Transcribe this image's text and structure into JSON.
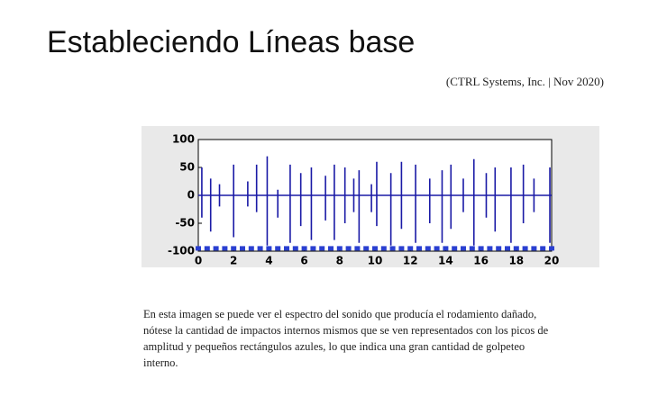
{
  "title": "Estableciendo Líneas base",
  "citation": "(CTRL Systems, Inc. | Nov 2020)",
  "caption_lines": [
    "En esta imagen se puede ver el espectro del sonido que producía el rodamiento dañado,",
    "nótese la cantidad de impactos internos mismos que se ven representados con los picos de",
    "amplitud y pequeños rectángulos azules, lo que indica una gran cantidad de golpeteo",
    "interno."
  ],
  "chart_data": {
    "type": "line",
    "xlim": [
      0,
      20
    ],
    "ylim": [
      -100,
      100
    ],
    "xticks": [
      0,
      2,
      4,
      6,
      8,
      10,
      12,
      14,
      16,
      18,
      20
    ],
    "yticks": [
      -100,
      -50,
      0,
      50,
      100
    ],
    "series": [
      {
        "color": "#1a1aa6",
        "x": [
          0,
          0.2,
          0.2,
          0.2,
          0.2,
          0.7,
          0.7,
          0.7,
          0.7,
          1.2,
          1.2,
          1.2,
          1.2,
          2,
          2,
          2,
          2,
          2.8,
          2.8,
          2.8,
          2.8,
          3.3,
          3.3,
          3.3,
          3.3,
          3.9,
          3.9,
          3.9,
          3.9,
          4.5,
          4.5,
          4.5,
          4.5,
          5.2,
          5.2,
          5.2,
          5.2,
          5.8,
          5.8,
          5.8,
          5.8,
          6.4,
          6.4,
          6.4,
          6.4,
          7.2,
          7.2,
          7.2,
          7.2,
          7.7,
          7.7,
          7.7,
          7.7,
          8.3,
          8.3,
          8.3,
          8.3,
          8.8,
          8.8,
          8.8,
          8.8,
          9.1,
          9.1,
          9.1,
          9.1,
          9.8,
          9.8,
          9.8,
          9.8,
          10.1,
          10.1,
          10.1,
          10.1,
          10.9,
          10.9,
          10.9,
          10.9,
          11.5,
          11.5,
          11.5,
          11.5,
          12.3,
          12.3,
          12.3,
          12.3,
          13.1,
          13.1,
          13.1,
          13.1,
          13.8,
          13.8,
          13.8,
          13.8,
          14.3,
          14.3,
          14.3,
          14.3,
          15,
          15,
          15,
          15,
          15.6,
          15.6,
          15.6,
          15.6,
          16.3,
          16.3,
          16.3,
          16.3,
          16.8,
          16.8,
          16.8,
          16.8,
          17.7,
          17.7,
          17.7,
          17.7,
          18.4,
          18.4,
          18.4,
          18.4,
          19,
          19,
          19,
          19,
          19.9,
          19.9,
          19.9,
          19.9,
          20
        ],
        "values": [
          0,
          0,
          50,
          -40,
          0,
          0,
          30,
          -65,
          0,
          0,
          20,
          -20,
          0,
          0,
          55,
          -75,
          0,
          0,
          25,
          -20,
          0,
          0,
          55,
          -30,
          0,
          0,
          70,
          -90,
          0,
          0,
          10,
          -40,
          0,
          0,
          55,
          -85,
          0,
          0,
          40,
          -55,
          0,
          0,
          50,
          -80,
          0,
          0,
          35,
          -45,
          0,
          0,
          55,
          -80,
          0,
          0,
          50,
          -50,
          0,
          0,
          30,
          -30,
          0,
          0,
          45,
          -85,
          0,
          0,
          20,
          -30,
          0,
          0,
          60,
          -55,
          0,
          0,
          40,
          -90,
          0,
          0,
          60,
          -60,
          0,
          0,
          55,
          -85,
          0,
          0,
          30,
          -50,
          0,
          0,
          45,
          -85,
          0,
          0,
          55,
          -60,
          0,
          0,
          30,
          -30,
          0,
          0,
          65,
          -90,
          0,
          0,
          40,
          -40,
          0,
          0,
          50,
          -65,
          0,
          0,
          50,
          -85,
          0,
          0,
          55,
          -50,
          0,
          0,
          30,
          -30,
          0,
          0,
          50,
          -85,
          0,
          0
        ]
      },
      {
        "color": "#2a3fd0",
        "marker": "square",
        "x": [
          0,
          0.5,
          1,
          1.5,
          2,
          2.5,
          3,
          3.5,
          4,
          4.5,
          5,
          5.5,
          6,
          6.5,
          7,
          7.5,
          8,
          8.5,
          9,
          9.5,
          10,
          10.5,
          11,
          11.5,
          12,
          12.5,
          13,
          13.5,
          14,
          14.5,
          15,
          15.5,
          16,
          16.5,
          17,
          17.5,
          18,
          18.5,
          19,
          19.5,
          20
        ],
        "values": [
          -95,
          -95,
          -95,
          -95,
          -95,
          -95,
          -95,
          -95,
          -95,
          -95,
          -95,
          -95,
          -95,
          -95,
          -95,
          -95,
          -95,
          -95,
          -95,
          -95,
          -95,
          -95,
          -95,
          -95,
          -95,
          -95,
          -95,
          -95,
          -95,
          -95,
          -95,
          -95,
          -95,
          -95,
          -95,
          -95,
          -95,
          -95,
          -95,
          -95,
          -95
        ]
      }
    ]
  }
}
